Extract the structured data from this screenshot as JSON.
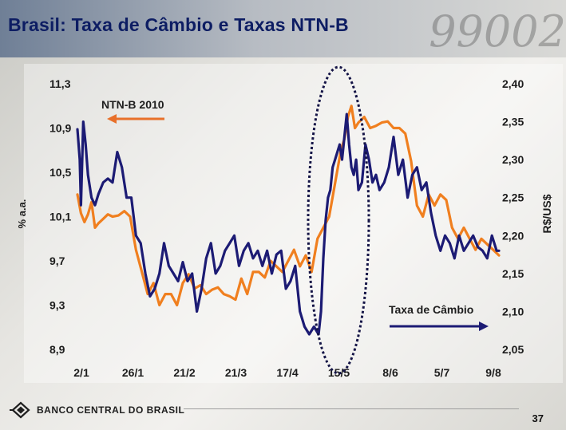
{
  "slide": {
    "title": "Brasil: Taxa de Câmbio e Taxas NTN-B",
    "bank_name": "BANCO CENTRAL DO BRASIL",
    "page_number": "37",
    "watermark_numbers": "99002",
    "logo_icon": "bcb-logo-icon"
  },
  "chart_data": {
    "type": "line",
    "title": "",
    "y_left_label": "% a.a.",
    "y_right_label": "R$/US$",
    "y_left_ticks": [
      "11,3",
      "10,9",
      "10,5",
      "10,1",
      "9,7",
      "9,3",
      "8,9"
    ],
    "y_right_ticks": [
      "2,40",
      "2,35",
      "2,30",
      "2,25",
      "2,20",
      "2,15",
      "2,10",
      "2,05"
    ],
    "x_ticks": [
      "2/1",
      "26/1",
      "21/2",
      "21/3",
      "17/4",
      "15/5",
      "8/6",
      "5/7",
      "9/8"
    ],
    "ylim_left": [
      8.9,
      11.3
    ],
    "ylim_right": [
      2.05,
      2.4
    ],
    "colors": {
      "ntnb": "#f07f1f",
      "cambio": "#1c1b74",
      "ellipse": "#141446"
    },
    "annotations": {
      "ntnb_label": "NTN-B 2010",
      "ntnb_arrow": "left",
      "cambio_label": "Taxa de Câmbio",
      "cambio_arrow": "right",
      "highlight": "dotted ellipse around 15/5 to 8/6"
    },
    "series": [
      {
        "name": "NTN-B 2010",
        "axis": "left",
        "x": [
          0,
          3,
          6,
          9,
          12,
          15,
          18,
          22,
          26,
          30,
          35,
          40,
          45,
          50,
          55,
          60,
          65,
          70,
          75,
          80,
          85,
          90,
          95,
          100,
          105,
          110,
          115,
          120,
          125,
          130,
          135,
          140,
          145,
          150,
          155,
          160,
          165,
          170,
          175,
          180,
          185,
          190,
          195,
          200,
          205,
          210,
          215,
          220,
          225,
          228,
          231,
          234,
          237,
          240,
          245,
          250,
          255,
          260,
          265,
          270,
          275,
          280,
          285,
          290,
          295,
          300,
          305,
          310,
          315,
          320,
          325,
          330,
          335,
          340,
          345,
          350,
          355,
          360
        ],
        "values": [
          10.3,
          10.13,
          10.05,
          10.12,
          10.23,
          10.0,
          10.04,
          10.08,
          10.12,
          10.1,
          10.11,
          10.15,
          10.1,
          9.8,
          9.6,
          9.4,
          9.5,
          9.3,
          9.4,
          9.4,
          9.3,
          9.5,
          9.58,
          9.45,
          9.48,
          9.4,
          9.44,
          9.46,
          9.4,
          9.38,
          9.35,
          9.54,
          9.4,
          9.6,
          9.6,
          9.55,
          9.7,
          9.65,
          9.6,
          9.7,
          9.8,
          9.65,
          9.75,
          9.6,
          9.9,
          10.0,
          10.1,
          10.4,
          10.7,
          10.8,
          11.0,
          11.1,
          10.9,
          10.95,
          11.0,
          10.9,
          10.92,
          10.95,
          10.96,
          10.9,
          10.9,
          10.85,
          10.6,
          10.2,
          10.1,
          10.3,
          10.2,
          10.3,
          10.25,
          10.0,
          9.9,
          10.0,
          9.9,
          9.8,
          9.9,
          9.85,
          9.8,
          9.75
        ]
      },
      {
        "name": "Taxa de Câmbio",
        "axis": "right",
        "x": [
          0,
          2,
          3,
          5,
          7,
          9,
          12,
          15,
          18,
          22,
          26,
          30,
          34,
          38,
          42,
          46,
          50,
          54,
          58,
          62,
          66,
          70,
          74,
          78,
          82,
          86,
          90,
          94,
          98,
          102,
          106,
          110,
          114,
          118,
          122,
          126,
          130,
          134,
          138,
          142,
          146,
          150,
          154,
          158,
          162,
          166,
          170,
          174,
          178,
          182,
          186,
          190,
          194,
          198,
          202,
          206,
          208,
          210,
          212,
          214,
          216,
          218,
          220,
          222,
          224,
          226,
          228,
          230,
          232,
          234,
          236,
          238,
          240,
          243,
          246,
          249,
          252,
          255,
          258,
          262,
          266,
          270,
          274,
          278,
          282,
          286,
          290,
          294,
          298,
          302,
          306,
          310,
          314,
          318,
          322,
          326,
          330,
          334,
          338,
          342,
          346,
          350,
          354,
          358,
          360
        ],
        "values": [
          2.34,
          2.3,
          2.24,
          2.35,
          2.32,
          2.28,
          2.25,
          2.24,
          2.255,
          2.27,
          2.275,
          2.27,
          2.31,
          2.29,
          2.25,
          2.25,
          2.2,
          2.19,
          2.15,
          2.12,
          2.13,
          2.15,
          2.19,
          2.16,
          2.15,
          2.14,
          2.165,
          2.14,
          2.15,
          2.1,
          2.13,
          2.17,
          2.19,
          2.15,
          2.16,
          2.18,
          2.19,
          2.2,
          2.16,
          2.18,
          2.19,
          2.17,
          2.18,
          2.16,
          2.18,
          2.15,
          2.175,
          2.18,
          2.13,
          2.14,
          2.16,
          2.1,
          2.08,
          2.07,
          2.08,
          2.07,
          2.1,
          2.17,
          2.22,
          2.25,
          2.26,
          2.29,
          2.3,
          2.31,
          2.32,
          2.3,
          2.33,
          2.36,
          2.32,
          2.29,
          2.28,
          2.3,
          2.26,
          2.27,
          2.32,
          2.3,
          2.27,
          2.28,
          2.26,
          2.27,
          2.29,
          2.33,
          2.28,
          2.3,
          2.25,
          2.28,
          2.29,
          2.26,
          2.27,
          2.23,
          2.2,
          2.18,
          2.2,
          2.19,
          2.17,
          2.2,
          2.18,
          2.19,
          2.2,
          2.185,
          2.18,
          2.17,
          2.2,
          2.18,
          2.18
        ]
      }
    ]
  }
}
